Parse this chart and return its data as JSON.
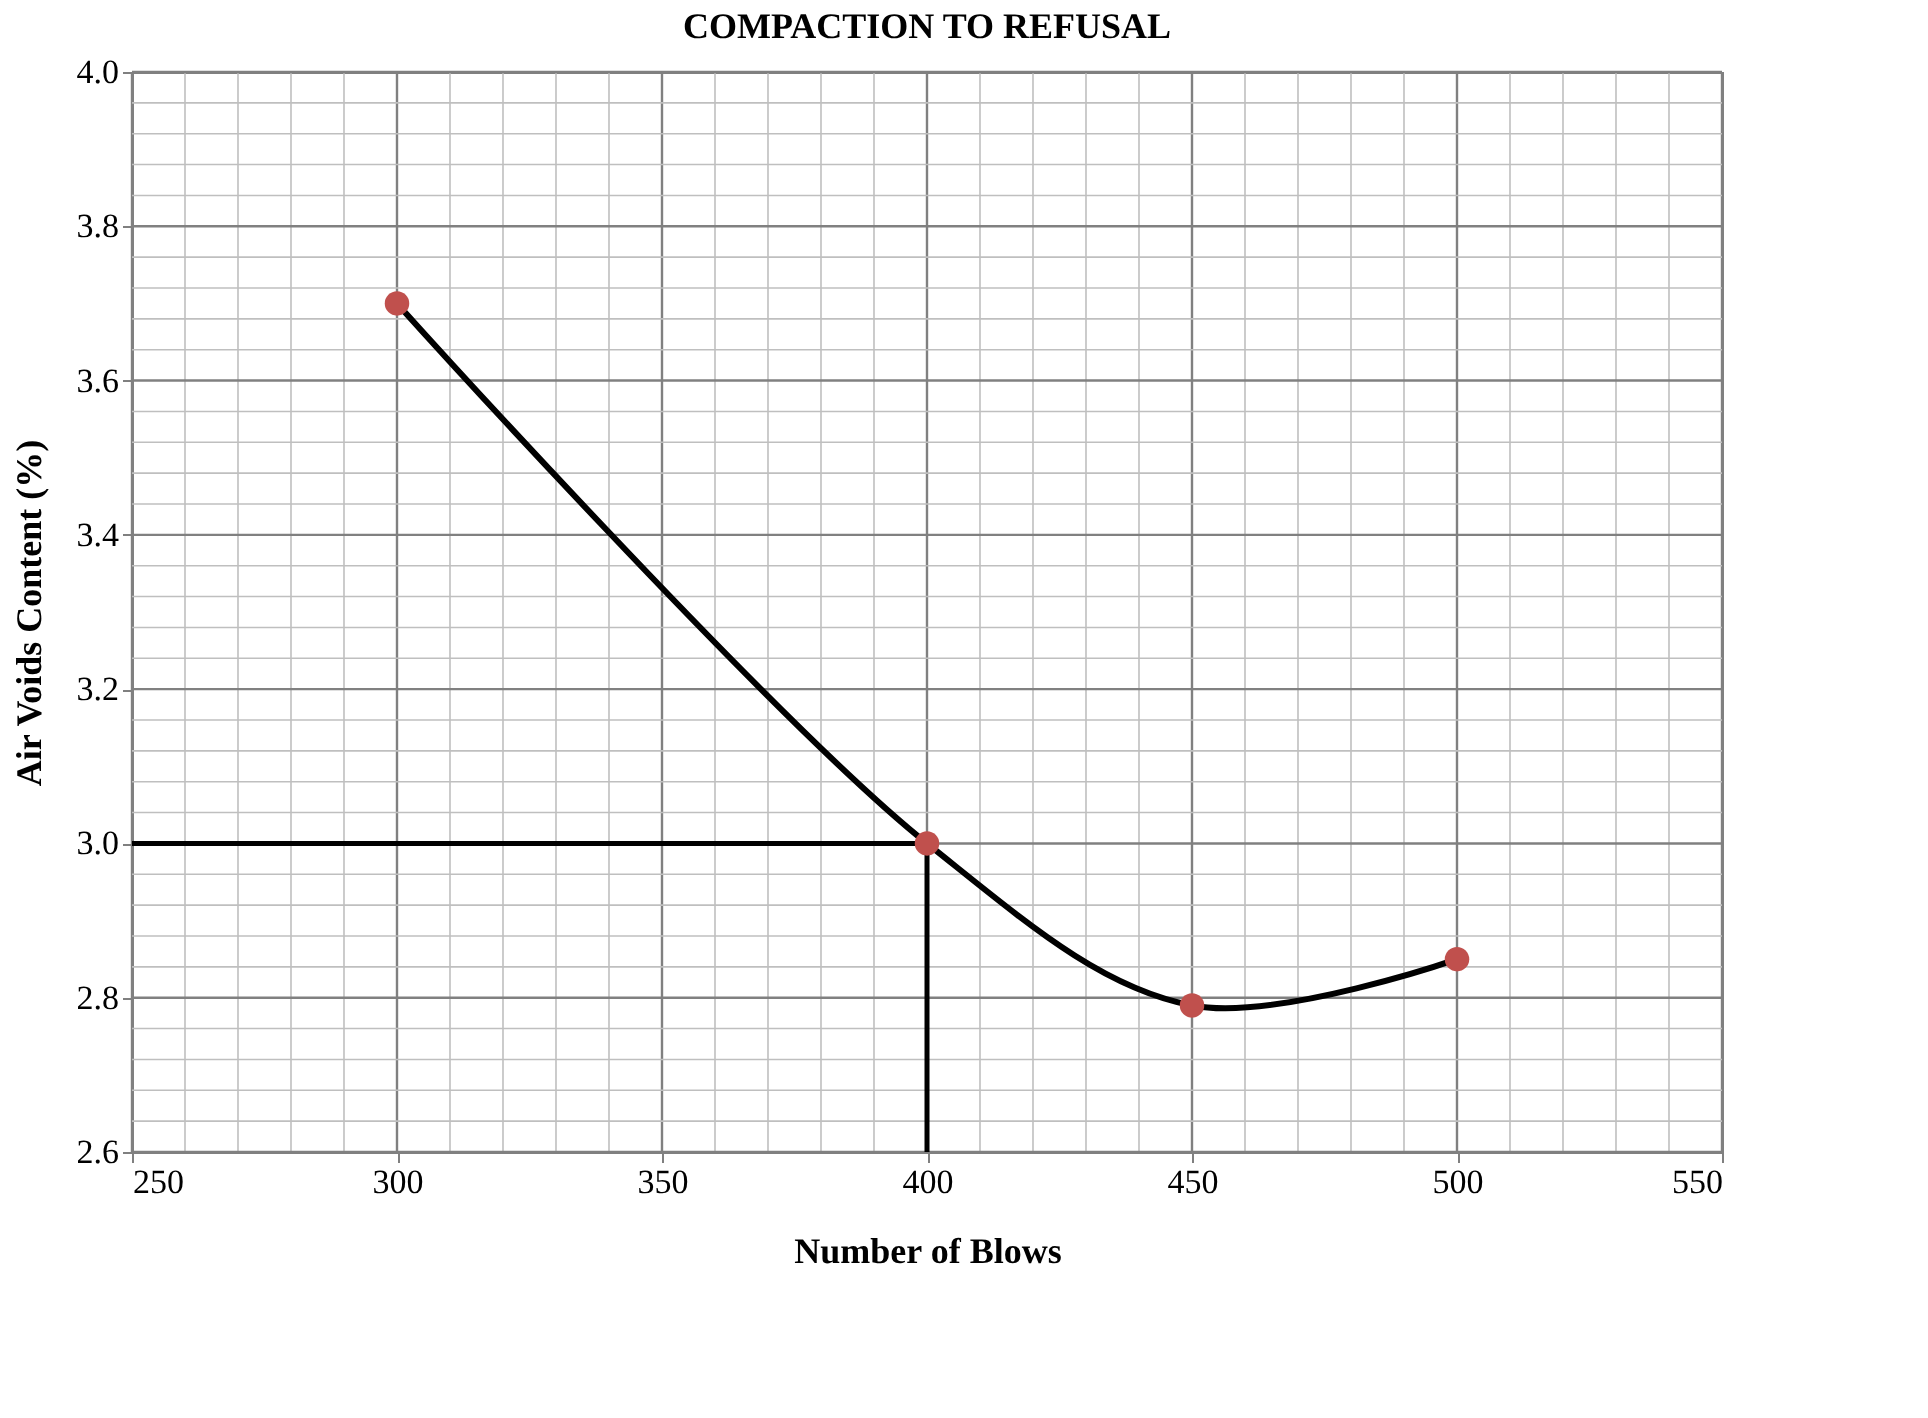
{
  "chart_data": {
    "type": "line",
    "title": "COMPACTION TO REFUSAL",
    "xlabel": "Number of Blows",
    "ylabel": "Air Voids Content (%)",
    "x": [
      300,
      400,
      450,
      500
    ],
    "series": [
      {
        "type": "line",
        "color": "#000000",
        "values": [
          3.7,
          3.0,
          2.79,
          2.85
        ],
        "marker": "none"
      },
      {
        "type": "scatter",
        "color": "#c0504d",
        "values": [
          3.7,
          3.0,
          2.79,
          2.85
        ],
        "marker": "circle"
      }
    ],
    "line_style": "solid",
    "grid": true,
    "xlim": [
      250,
      550
    ],
    "xticks": [
      250,
      300,
      350,
      400,
      450,
      500,
      550
    ],
    "ylim": [
      2.6,
      4.0
    ],
    "yticks": [
      2.6,
      2.8,
      {
        "value": 3.0,
        "label": "3.0"
      },
      3.2,
      3.4,
      3.6,
      3.8,
      {
        "value": 4.0,
        "label": "4.0"
      }
    ],
    "ref_lines": [
      {
        "axis": "y",
        "value": 3.0,
        "color": "#000000"
      },
      {
        "axis": "x",
        "value": 400,
        "color": "#000000"
      }
    ]
  }
}
